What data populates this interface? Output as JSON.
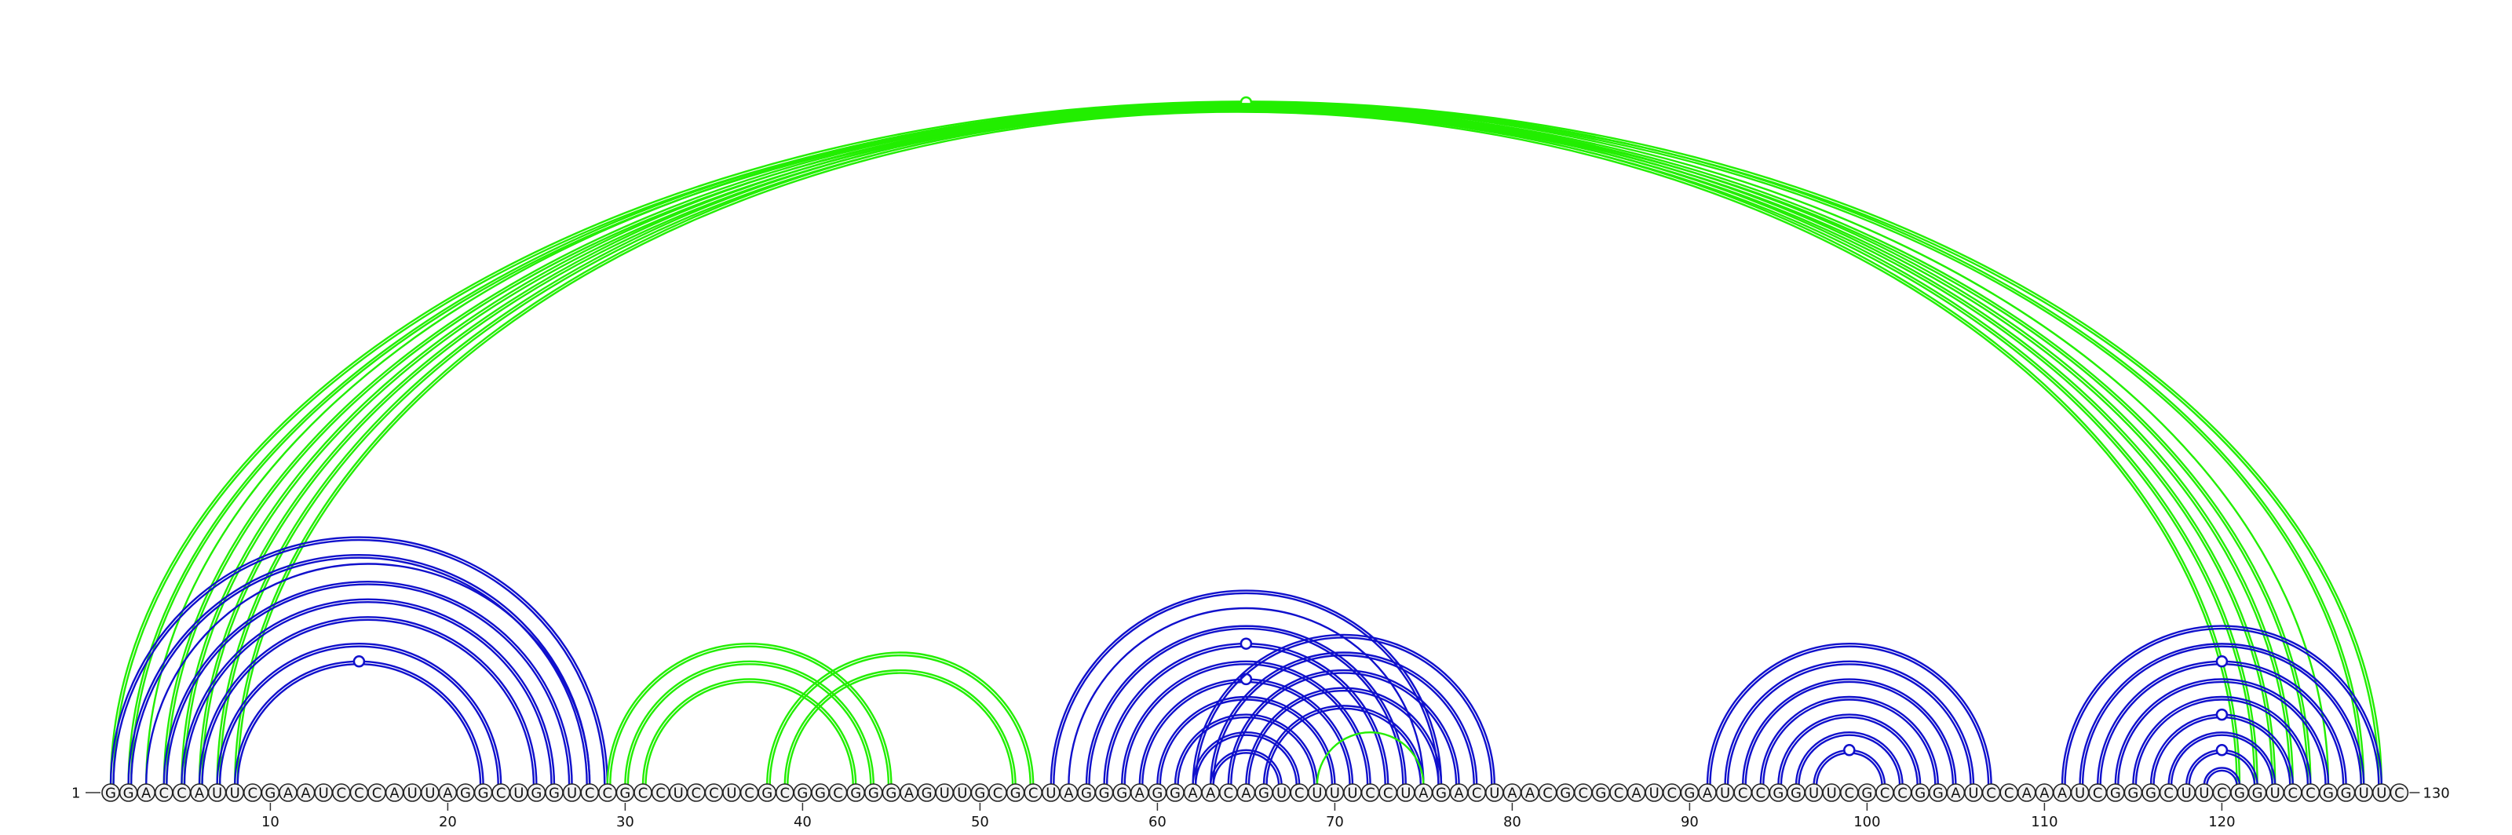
{
  "sequence": "GGACCAUUCGAAUCCCAUUAGGCUGGUCCGCCUCCUCGCGGCGGGAGUUGCGCUAGGGAGGAACAGUCUUUCCUAGACUAACGCGCAUCGAUCCGGUUCGCCGGAUCCAAAUCGGGCUUCGGUCCGGUUC",
  "start_label": "1",
  "end_label": "130",
  "tick_labels": [
    "10",
    "20",
    "30",
    "40",
    "50",
    "60",
    "70",
    "80",
    "90",
    "100",
    "110",
    "120"
  ],
  "colors": {
    "green": "#22ee00",
    "blue": "#1010cc"
  },
  "arcs": [
    {
      "i": 1,
      "j": 129,
      "color": "green",
      "doubled": true,
      "marker": false
    },
    {
      "i": 2,
      "j": 128,
      "color": "green",
      "doubled": true,
      "marker": true
    },
    {
      "i": 3,
      "j": 126,
      "color": "green",
      "doubled": false,
      "marker": false
    },
    {
      "i": 4,
      "j": 125,
      "color": "green",
      "doubled": true,
      "marker": false
    },
    {
      "i": 5,
      "j": 124,
      "color": "green",
      "doubled": true,
      "marker": false
    },
    {
      "i": 6,
      "j": 123,
      "color": "green",
      "doubled": true,
      "marker": false
    },
    {
      "i": 7,
      "j": 122,
      "color": "green",
      "doubled": true,
      "marker": false
    },
    {
      "i": 8,
      "j": 121,
      "color": "green",
      "doubled": true,
      "marker": false
    },
    {
      "i": 1,
      "j": 29,
      "color": "blue",
      "doubled": true,
      "marker": false
    },
    {
      "i": 2,
      "j": 28,
      "color": "blue",
      "doubled": true,
      "marker": false
    },
    {
      "i": 3,
      "j": 28,
      "color": "blue",
      "doubled": false,
      "marker": false
    },
    {
      "i": 4,
      "j": 27,
      "color": "blue",
      "doubled": true,
      "marker": false
    },
    {
      "i": 5,
      "j": 26,
      "color": "blue",
      "doubled": true,
      "marker": false
    },
    {
      "i": 6,
      "j": 25,
      "color": "blue",
      "doubled": true,
      "marker": false
    },
    {
      "i": 7,
      "j": 23,
      "color": "blue",
      "doubled": true,
      "marker": false
    },
    {
      "i": 8,
      "j": 22,
      "color": "blue",
      "doubled": true,
      "marker": true
    },
    {
      "i": 29,
      "j": 45,
      "color": "green",
      "doubled": true,
      "marker": false
    },
    {
      "i": 30,
      "j": 44,
      "color": "green",
      "doubled": true,
      "marker": false
    },
    {
      "i": 31,
      "j": 43,
      "color": "green",
      "doubled": true,
      "marker": false
    },
    {
      "i": 38,
      "j": 53,
      "color": "green",
      "doubled": true,
      "marker": false
    },
    {
      "i": 39,
      "j": 52,
      "color": "green",
      "doubled": true,
      "marker": false
    },
    {
      "i": 54,
      "j": 76,
      "color": "blue",
      "doubled": true,
      "marker": false
    },
    {
      "i": 55,
      "j": 75,
      "color": "blue",
      "doubled": false,
      "marker": false
    },
    {
      "i": 56,
      "j": 74,
      "color": "blue",
      "doubled": true,
      "marker": false
    },
    {
      "i": 57,
      "j": 73,
      "color": "blue",
      "doubled": true,
      "marker": true
    },
    {
      "i": 58,
      "j": 72,
      "color": "blue",
      "doubled": true,
      "marker": false
    },
    {
      "i": 59,
      "j": 71,
      "color": "blue",
      "doubled": true,
      "marker": true
    },
    {
      "i": 60,
      "j": 70,
      "color": "blue",
      "doubled": true,
      "marker": false
    },
    {
      "i": 61,
      "j": 69,
      "color": "blue",
      "doubled": true,
      "marker": false
    },
    {
      "i": 62,
      "j": 68,
      "color": "blue",
      "doubled": true,
      "marker": false
    },
    {
      "i": 63,
      "j": 67,
      "color": "blue",
      "doubled": true,
      "marker": false
    },
    {
      "i": 62,
      "j": 79,
      "color": "blue",
      "doubled": true,
      "marker": false
    },
    {
      "i": 63,
      "j": 78,
      "color": "blue",
      "doubled": true,
      "marker": false
    },
    {
      "i": 64,
      "j": 77,
      "color": "blue",
      "doubled": true,
      "marker": false
    },
    {
      "i": 65,
      "j": 76,
      "color": "blue",
      "doubled": true,
      "marker": false
    },
    {
      "i": 66,
      "j": 75,
      "color": "blue",
      "doubled": true,
      "marker": false
    },
    {
      "i": 69,
      "j": 75,
      "color": "green",
      "doubled": false,
      "marker": false
    },
    {
      "i": 91,
      "j": 107,
      "color": "blue",
      "doubled": true,
      "marker": false
    },
    {
      "i": 92,
      "j": 106,
      "color": "blue",
      "doubled": true,
      "marker": false
    },
    {
      "i": 93,
      "j": 105,
      "color": "blue",
      "doubled": true,
      "marker": false
    },
    {
      "i": 94,
      "j": 104,
      "color": "blue",
      "doubled": true,
      "marker": false
    },
    {
      "i": 95,
      "j": 103,
      "color": "blue",
      "doubled": true,
      "marker": false
    },
    {
      "i": 96,
      "j": 102,
      "color": "blue",
      "doubled": true,
      "marker": false
    },
    {
      "i": 97,
      "j": 101,
      "color": "blue",
      "doubled": true,
      "marker": true
    },
    {
      "i": 111,
      "j": 129,
      "color": "blue",
      "doubled": true,
      "marker": false
    },
    {
      "i": 112,
      "j": 128,
      "color": "blue",
      "doubled": true,
      "marker": false
    },
    {
      "i": 113,
      "j": 127,
      "color": "blue",
      "doubled": true,
      "marker": true
    },
    {
      "i": 114,
      "j": 126,
      "color": "blue",
      "doubled": true,
      "marker": false
    },
    {
      "i": 115,
      "j": 125,
      "color": "blue",
      "doubled": true,
      "marker": false
    },
    {
      "i": 116,
      "j": 124,
      "color": "blue",
      "doubled": true,
      "marker": true
    },
    {
      "i": 117,
      "j": 123,
      "color": "blue",
      "doubled": true,
      "marker": false
    },
    {
      "i": 118,
      "j": 122,
      "color": "blue",
      "doubled": true,
      "marker": true
    },
    {
      "i": 119,
      "j": 121,
      "color": "blue",
      "doubled": true,
      "marker": false
    }
  ]
}
